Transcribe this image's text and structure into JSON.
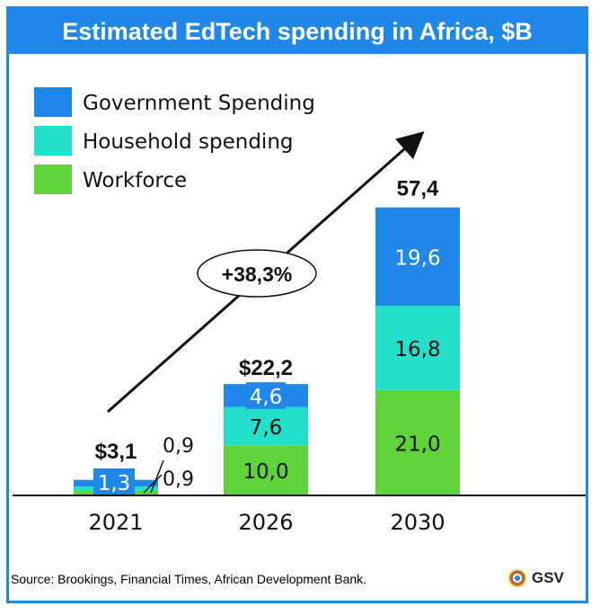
{
  "title": "Estimated EdTech spending in Africa, $B",
  "source": "Source: Brookings, Financial Times, African Development Bank.",
  "logo_text": "GSV",
  "cagr_label": "+38,3%",
  "colors": {
    "government": "#1f87e8",
    "household": "#24e0cb",
    "workforce": "#5fd33a",
    "frame": "#1f87e8"
  },
  "chart_data": {
    "type": "bar",
    "stacked": true,
    "categories": [
      "2021",
      "2026",
      "2030"
    ],
    "series": [
      {
        "name": "Workforce",
        "values": [
          0.9,
          10.0,
          21.0
        ]
      },
      {
        "name": "Household spending",
        "values": [
          0.9,
          7.6,
          16.8
        ]
      },
      {
        "name": "Government Spending",
        "values": [
          1.3,
          4.6,
          19.6
        ]
      }
    ],
    "value_labels": [
      [
        "0,9",
        "10,0",
        "21,0"
      ],
      [
        "0,9",
        "7,6",
        "16,8"
      ],
      [
        "1,3",
        "4,6",
        "19,6"
      ]
    ],
    "totals": [
      "$3,1",
      "$22,2",
      "57,4"
    ],
    "legend": [
      "Government Spending",
      "Household spending",
      "Workforce"
    ],
    "legend_position": "top-left",
    "grid": false
  }
}
